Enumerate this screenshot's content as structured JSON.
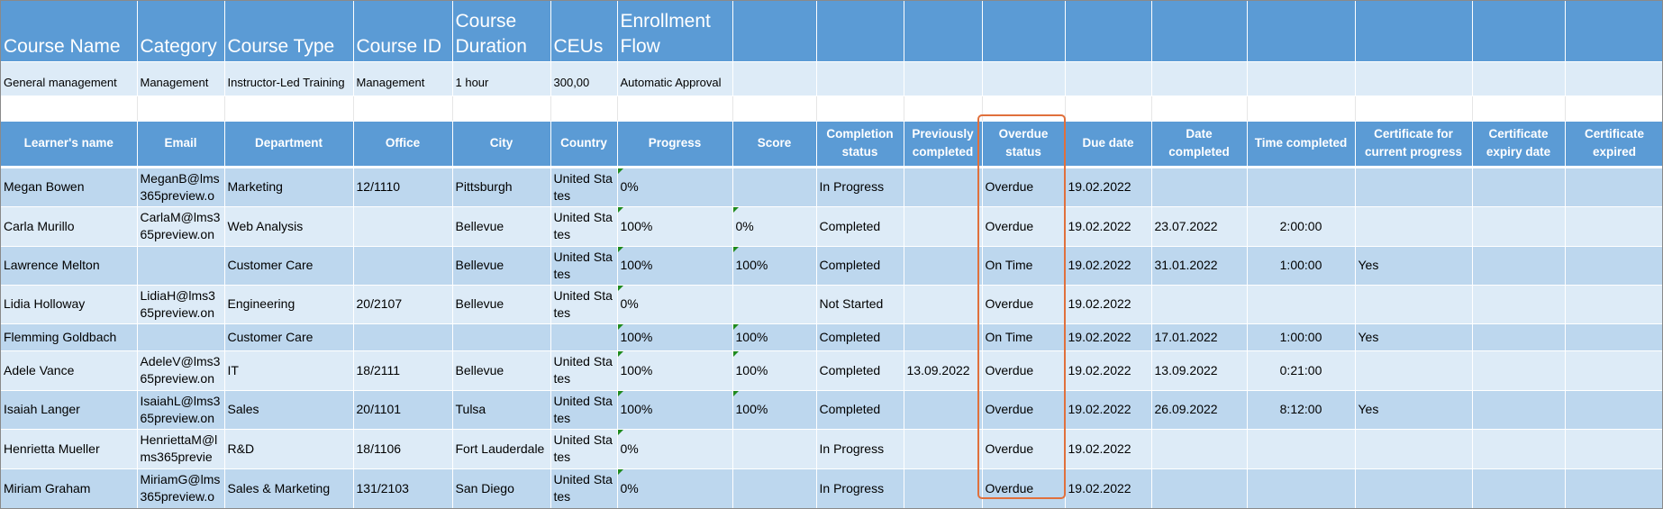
{
  "course_header": [
    "Course Name",
    "Category",
    "Course Type",
    "Course ID",
    "Course Duration",
    "CEUs",
    "Enrollment Flow"
  ],
  "course_values": [
    "General management",
    "Management",
    "Instructor-Led Training",
    "Management",
    "1 hour",
    "300,00",
    "Automatic Approval"
  ],
  "learner_header": [
    "Learner's name",
    "Email",
    "Department",
    "Office",
    "City",
    "Country",
    "Progress",
    "Score",
    "Completion status",
    "Previously completed",
    "Overdue status",
    "Due date",
    "Date completed",
    "Time completed",
    "Certificate for current progress",
    "Certificate expiry date",
    "Certificate expired"
  ],
  "learners": [
    [
      "Megan Bowen",
      "MeganB@lms365preview.o",
      "Marketing",
      "12/1110",
      "Pittsburgh",
      "United States",
      "0%",
      "",
      "In Progress",
      "",
      "Overdue",
      "19.02.2022",
      "",
      "",
      "",
      "",
      ""
    ],
    [
      "Carla Murillo",
      "CarlaM@lms365preview.on",
      "Web Analysis",
      "",
      "Bellevue",
      "United States",
      "100%",
      "0%",
      "Completed",
      "",
      "Overdue",
      "19.02.2022",
      "23.07.2022",
      "2:00:00",
      "",
      "",
      ""
    ],
    [
      "Lawrence Melton",
      "",
      "Customer Care",
      "",
      "Bellevue",
      "United States",
      "100%",
      "100%",
      "Completed",
      "",
      "On Time",
      "19.02.2022",
      "31.01.2022",
      "1:00:00",
      "Yes",
      "",
      ""
    ],
    [
      "Lidia Holloway",
      "LidiaH@lms365preview.on",
      "Engineering",
      "20/2107",
      "Bellevue",
      "United States",
      "0%",
      "",
      "Not Started",
      "",
      "Overdue",
      "19.02.2022",
      "",
      "",
      "",
      "",
      ""
    ],
    [
      "Flemming Goldbach",
      "",
      "Customer Care",
      "",
      "",
      "",
      "100%",
      "100%",
      "Completed",
      "",
      "On Time",
      "19.02.2022",
      "17.01.2022",
      "1:00:00",
      "Yes",
      "",
      ""
    ],
    [
      "Adele Vance",
      "AdeleV@lms365preview.on",
      "IT",
      "18/2111",
      "Bellevue",
      "United States",
      "100%",
      "100%",
      "Completed",
      "13.09.2022",
      "Overdue",
      "19.02.2022",
      "13.09.2022",
      "0:21:00",
      "",
      "",
      ""
    ],
    [
      "Isaiah Langer",
      "IsaiahL@lms365preview.on",
      "Sales",
      "20/1101",
      "Tulsa",
      "United States",
      "100%",
      "100%",
      "Completed",
      "",
      "Overdue",
      "19.02.2022",
      "26.09.2022",
      "8:12:00",
      "Yes",
      "",
      ""
    ],
    [
      "Henrietta Mueller",
      "HenriettaM@lms365previe",
      "R&D",
      "18/1106",
      "Fort Lauderdale",
      "United States",
      "0%",
      "",
      "In Progress",
      "",
      "Overdue",
      "19.02.2022",
      "",
      "",
      "",
      "",
      ""
    ],
    [
      "Miriam Graham",
      "MiriamG@lms365preview.o",
      "Sales & Marketing",
      "131/2103",
      "San Diego",
      "United States",
      "0%",
      "",
      "In Progress",
      "",
      "Overdue",
      "19.02.2022",
      "",
      "",
      "",
      "",
      ""
    ]
  ],
  "colors": {
    "header": "#5b9bd5",
    "row_dark": "#bdd7ee",
    "row_light": "#ddebf7",
    "highlight": "#e0703c",
    "error_indicator": "#1e8a1e"
  }
}
